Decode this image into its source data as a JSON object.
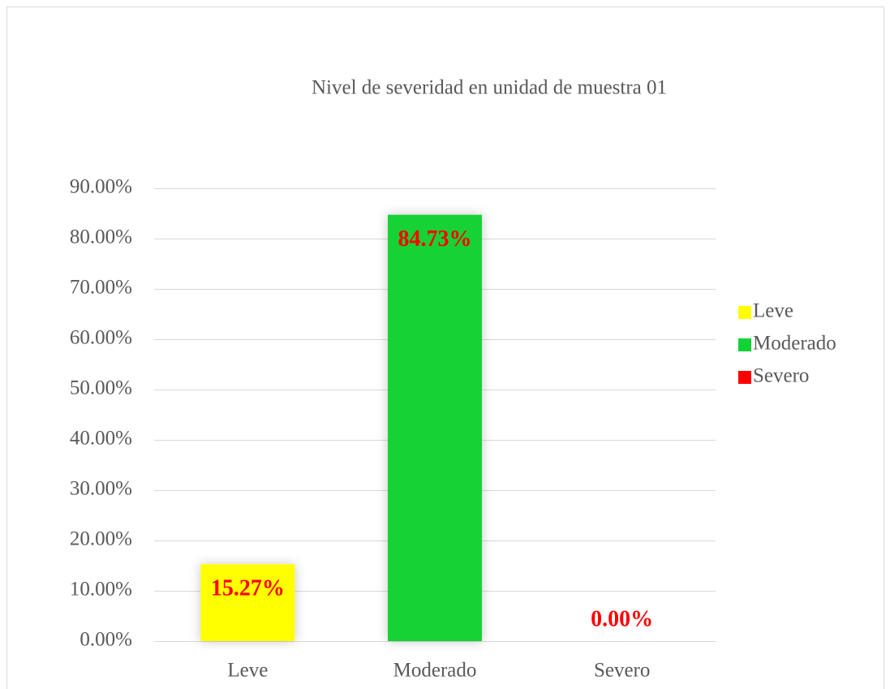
{
  "chart_data": {
    "type": "bar",
    "title": "Nivel de severidad en unidad de muestra 01",
    "categories": [
      "Leve",
      "Moderado",
      "Severo"
    ],
    "values": [
      15.27,
      84.73,
      0
    ],
    "value_labels": [
      "15.27%",
      "84.73%",
      "0.00%"
    ],
    "colors": [
      "#ffff00",
      "#12d236",
      "#ff0000"
    ],
    "label_color": "#ff0000",
    "ylim": [
      0,
      90
    ],
    "yticks": [
      {
        "value": 0,
        "label": "0.00%"
      },
      {
        "value": 10,
        "label": "10.00%"
      },
      {
        "value": 20,
        "label": "20.00%"
      },
      {
        "value": 30,
        "label": "30.00%"
      },
      {
        "value": 40,
        "label": "40.00%"
      },
      {
        "value": 50,
        "label": "50.00%"
      },
      {
        "value": 60,
        "label": "60.00%"
      },
      {
        "value": 70,
        "label": "70.00%"
      },
      {
        "value": 80,
        "label": "80.00%"
      },
      {
        "value": 90,
        "label": "90.00%"
      }
    ],
    "grid": true,
    "legend": "right"
  }
}
